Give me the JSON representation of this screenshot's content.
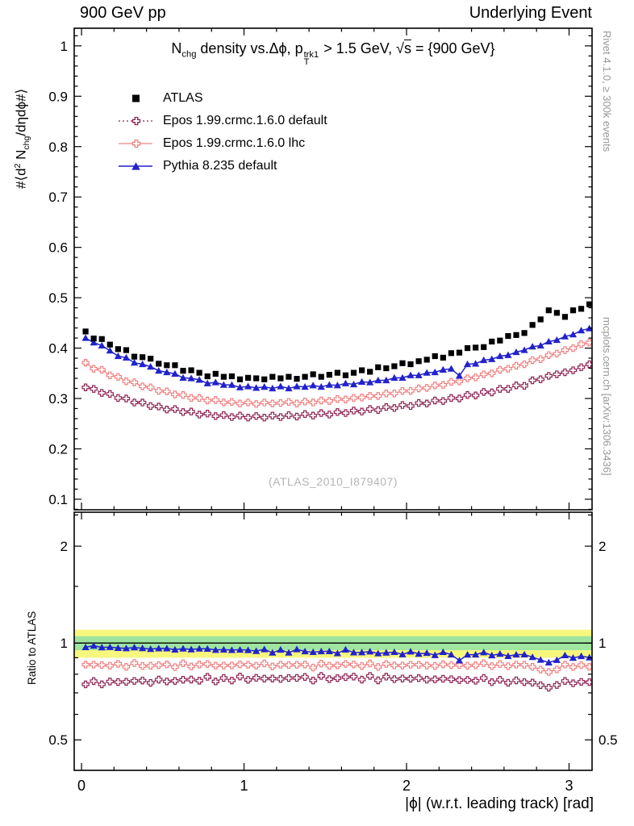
{
  "header": {
    "left": "900 GeV pp",
    "right": "Underlying Event"
  },
  "title": {
    "n": "N",
    "n_sub": "chg",
    "mid": " density vs.Δϕ, p",
    "p_sup": "trk1",
    "p_sub": "T",
    "after": " > 1.5 GeV, ",
    "sqrt": "√",
    "s": "s",
    "end": " = {900 GeV}"
  },
  "y_axis_label": {
    "a": "#⟨d",
    "d_sup": "2",
    "b": " N",
    "b_sub": "chg",
    "c": "/dηdϕ#⟩"
  },
  "ratio_axis_label": "Ratio to ATLAS",
  "x_axis_label": "|ϕ| (w.r.t. leading track) [rad]",
  "watermark": "(ATLAS_2010_I879407)",
  "side_notes": {
    "top": "Rivet 4.1.0, ≥ 300k events",
    "bottom": "mcplots.cern.ch [arXiv:1306.3436]"
  },
  "chart_data": {
    "type": "line",
    "title": "Nchg density vs. Δϕ, pT(trk1) > 1.5 GeV, √s = {900 GeV}",
    "xlabel": "|ϕ| (w.r.t. leading track) [rad]",
    "ylabel": "#⟨d2 Nchg/dηdϕ#⟩",
    "ratio_ylabel": "Ratio to ATLAS",
    "xlim": [
      -0.045,
      3.1416
    ],
    "ylim_main": [
      0.079,
      1.035
    ],
    "ylim_ratio": [
      0.402,
      2.55
    ],
    "ratio_scale": "log",
    "legend_position": "top-left",
    "grid": false,
    "xticks": {
      "major": [
        0,
        1,
        2,
        3
      ],
      "labels": [
        "0",
        "1",
        "2",
        "3"
      ],
      "minor_step": 0.2
    },
    "yticks_main": {
      "major": [
        0.1,
        0.2,
        0.3,
        0.4,
        0.5,
        0.6,
        0.7,
        0.8,
        0.9,
        1
      ],
      "labels": [
        "0.1",
        "0.2",
        "0.3",
        "0.4",
        "0.5",
        "0.6",
        "0.7",
        "0.8",
        "0.9",
        "1"
      ],
      "minor_step": 0.02
    },
    "yticks_ratio": {
      "major": [
        0.5,
        1,
        2
      ],
      "labels": [
        "0.5",
        "1",
        "2"
      ],
      "minor": [
        0.6,
        0.7,
        0.8,
        0.9,
        1.5,
        2.5
      ]
    },
    "ratio_reference": 1,
    "ratio_bands": [
      {
        "lo": 0.9,
        "hi": 1.1,
        "color": "#f7f77e"
      },
      {
        "lo": 0.95,
        "hi": 1.05,
        "color": "#9fe59f"
      }
    ],
    "x": [
      0.025,
      0.075,
      0.125,
      0.175,
      0.225,
      0.275,
      0.325,
      0.375,
      0.425,
      0.475,
      0.525,
      0.575,
      0.625,
      0.675,
      0.725,
      0.775,
      0.825,
      0.875,
      0.925,
      0.975,
      1.025,
      1.075,
      1.125,
      1.175,
      1.225,
      1.275,
      1.325,
      1.375,
      1.425,
      1.475,
      1.525,
      1.575,
      1.625,
      1.675,
      1.725,
      1.775,
      1.825,
      1.875,
      1.925,
      1.975,
      2.025,
      2.075,
      2.125,
      2.175,
      2.225,
      2.275,
      2.325,
      2.375,
      2.425,
      2.475,
      2.525,
      2.575,
      2.625,
      2.675,
      2.725,
      2.775,
      2.825,
      2.875,
      2.925,
      2.975,
      3.025,
      3.075,
      3.125
    ],
    "series": [
      {
        "name": "ATLAS",
        "marker": "square",
        "color": "#000000",
        "line": "none",
        "values": [
          0.433,
          0.419,
          0.418,
          0.407,
          0.398,
          0.396,
          0.383,
          0.382,
          0.379,
          0.369,
          0.366,
          0.366,
          0.355,
          0.356,
          0.351,
          0.344,
          0.349,
          0.343,
          0.344,
          0.338,
          0.341,
          0.34,
          0.338,
          0.343,
          0.34,
          0.343,
          0.339,
          0.343,
          0.348,
          0.343,
          0.347,
          0.351,
          0.346,
          0.351,
          0.356,
          0.353,
          0.362,
          0.36,
          0.364,
          0.37,
          0.368,
          0.374,
          0.377,
          0.384,
          0.381,
          0.39,
          0.391,
          0.4,
          0.401,
          0.402,
          0.413,
          0.415,
          0.424,
          0.426,
          0.43,
          0.446,
          0.457,
          0.475,
          0.47,
          0.462,
          0.475,
          0.478,
          0.487
        ]
      },
      {
        "name": "Epos 1.99.crmc.1.6.0 default",
        "marker": "opencross",
        "color": "#8b2252",
        "line": "dotted",
        "values": [
          0.322,
          0.319,
          0.311,
          0.309,
          0.301,
          0.3,
          0.292,
          0.292,
          0.285,
          0.284,
          0.278,
          0.279,
          0.273,
          0.274,
          0.268,
          0.27,
          0.265,
          0.267,
          0.263,
          0.266,
          0.262,
          0.265,
          0.262,
          0.266,
          0.263,
          0.267,
          0.264,
          0.269,
          0.266,
          0.271,
          0.268,
          0.273,
          0.271,
          0.276,
          0.274,
          0.279,
          0.277,
          0.283,
          0.281,
          0.287,
          0.285,
          0.291,
          0.29,
          0.296,
          0.295,
          0.301,
          0.3,
          0.307,
          0.306,
          0.313,
          0.312,
          0.319,
          0.319,
          0.326,
          0.325,
          0.336,
          0.338,
          0.345,
          0.348,
          0.352,
          0.356,
          0.362,
          0.368
        ]
      },
      {
        "name": "Epos 1.99.crmc.1.6.0 lhc",
        "marker": "opencross",
        "color": "#f08080",
        "line": "solid",
        "values": [
          0.371,
          0.359,
          0.357,
          0.346,
          0.343,
          0.334,
          0.332,
          0.324,
          0.322,
          0.315,
          0.314,
          0.308,
          0.307,
          0.301,
          0.301,
          0.296,
          0.297,
          0.292,
          0.293,
          0.29,
          0.292,
          0.289,
          0.292,
          0.29,
          0.291,
          0.293,
          0.29,
          0.294,
          0.292,
          0.296,
          0.295,
          0.299,
          0.298,
          0.301,
          0.302,
          0.305,
          0.305,
          0.31,
          0.31,
          0.315,
          0.315,
          0.32,
          0.321,
          0.326,
          0.327,
          0.333,
          0.334,
          0.34,
          0.342,
          0.348,
          0.35,
          0.357,
          0.359,
          0.365,
          0.368,
          0.376,
          0.378,
          0.386,
          0.389,
          0.396,
          0.4,
          0.408,
          0.411
        ]
      },
      {
        "name": "Pythia 8.235 default",
        "marker": "triangle",
        "color": "#2222cc",
        "line": "solid",
        "values": [
          0.42,
          0.411,
          0.405,
          0.395,
          0.384,
          0.381,
          0.371,
          0.368,
          0.363,
          0.355,
          0.352,
          0.349,
          0.341,
          0.34,
          0.337,
          0.33,
          0.332,
          0.327,
          0.327,
          0.322,
          0.324,
          0.321,
          0.323,
          0.32,
          0.324,
          0.32,
          0.324,
          0.323,
          0.326,
          0.323,
          0.327,
          0.326,
          0.33,
          0.328,
          0.333,
          0.332,
          0.336,
          0.336,
          0.341,
          0.341,
          0.346,
          0.346,
          0.351,
          0.352,
          0.357,
          0.359,
          0.345,
          0.368,
          0.369,
          0.376,
          0.378,
          0.384,
          0.386,
          0.392,
          0.396,
          0.403,
          0.405,
          0.413,
          0.416,
          0.423,
          0.427,
          0.435,
          0.439
        ]
      }
    ]
  }
}
